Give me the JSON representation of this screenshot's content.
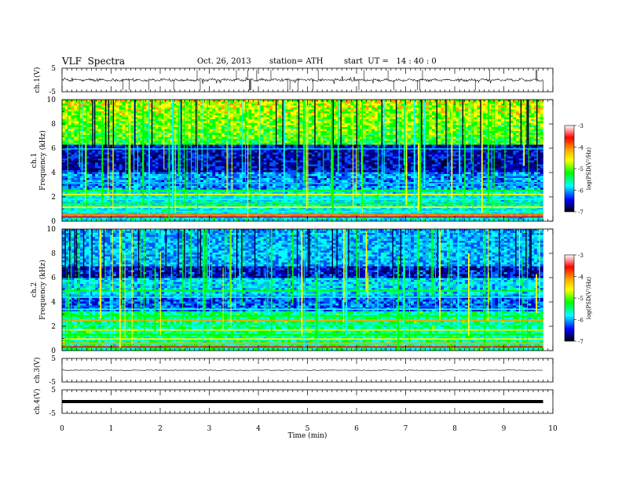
{
  "header": {
    "title": "VLF  Spectra",
    "date": "Oct. 26, 2013",
    "station": "station= ATH",
    "start": "start  UT =   14 : 40 : 0"
  },
  "colorbar": {
    "label": "log(PSD(V²/Hz)",
    "ticks": [
      "-3",
      "-4",
      "-5",
      "-6",
      "-7"
    ],
    "colors": [
      "#ffffff",
      "#ff0000",
      "#ffa500",
      "#ffff00",
      "#00ff00",
      "#00ffff",
      "#0000ff",
      "#000000"
    ]
  },
  "chart_data": [
    {
      "type": "line",
      "name": "ch1-waveform",
      "ylabel": "ch.1(V)",
      "ylim": [
        -5,
        5
      ],
      "yticks": [
        "5",
        "-5"
      ],
      "baseline": 0,
      "xlim": [
        0,
        10
      ],
      "data_end": 9.8
    },
    {
      "type": "heatmap",
      "name": "ch1-spectrogram",
      "ylabel_line1": "ch.1",
      "ylabel_line2": "Frequency  (kHz)",
      "ylim": [
        0,
        10
      ],
      "yticks": [
        "0",
        "2",
        "4",
        "6",
        "8",
        "10"
      ],
      "xlim": [
        0,
        10
      ],
      "data_end": 9.8,
      "zlim": [
        -7,
        -3
      ]
    },
    {
      "type": "heatmap",
      "name": "ch2-spectrogram",
      "ylabel_line1": "ch.2",
      "ylabel_line2": "Frequency  (kHz)",
      "ylim": [
        0,
        10
      ],
      "yticks": [
        "0",
        "2",
        "4",
        "6",
        "8",
        "10"
      ],
      "xlim": [
        0,
        10
      ],
      "data_end": 9.8,
      "zlim": [
        -7,
        -3
      ]
    },
    {
      "type": "line",
      "name": "ch3-waveform",
      "ylabel": "ch.3(V)",
      "ylim": [
        -5,
        5
      ],
      "yticks": [
        "5",
        "-5"
      ],
      "baseline": 0,
      "xlim": [
        0,
        10
      ],
      "data_end": 9.8
    },
    {
      "type": "line",
      "name": "ch4-waveform",
      "ylabel": "ch.4(V)",
      "ylim": [
        -5,
        5
      ],
      "yticks": [
        "5",
        "-5"
      ],
      "baseline": 0,
      "xlim": [
        0,
        10
      ],
      "data_end": 9.8
    }
  ],
  "xaxis": {
    "label": "Time  (min)",
    "ticks": [
      "0",
      "1",
      "2",
      "3",
      "4",
      "5",
      "6",
      "7",
      "8",
      "9",
      "10"
    ]
  }
}
